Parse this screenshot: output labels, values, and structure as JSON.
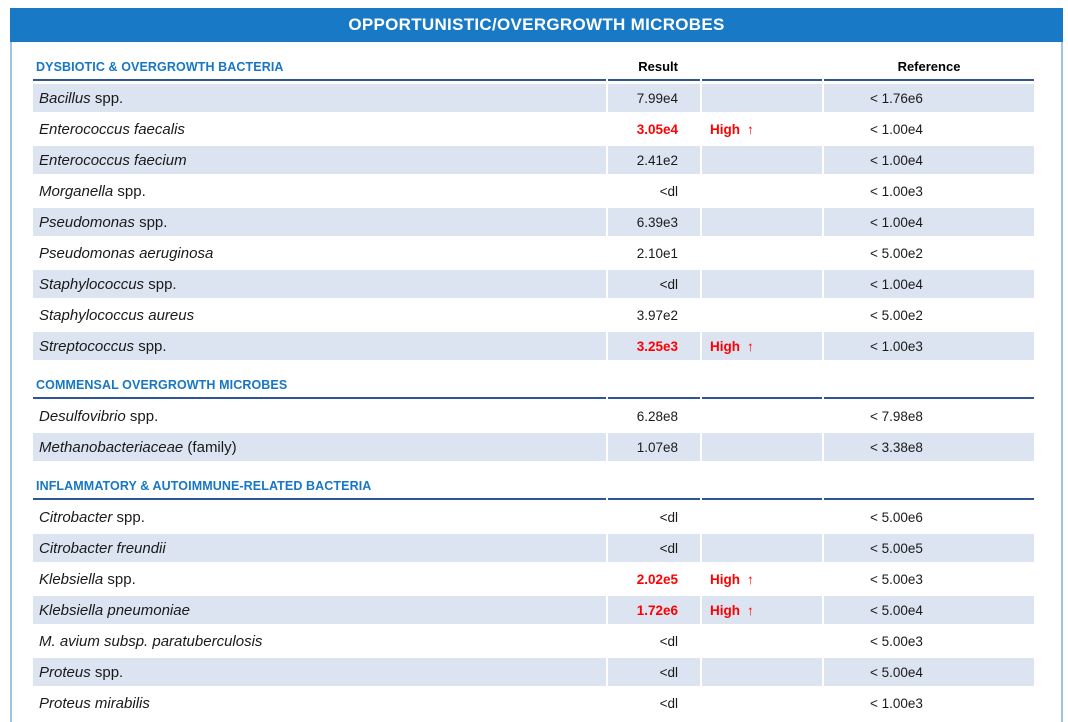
{
  "title": "OPPORTUNISTIC/OVERGROWTH MICROBES",
  "colors": {
    "header_bar": "#1879C6",
    "section_title": "#1777C4",
    "rule": "#2F5597",
    "row_stripe": "#DCE4F1",
    "panel_border": "#9DC3E6",
    "flag_red": "#FF0000"
  },
  "sections": [
    {
      "title": "DYSBIOTIC & OVERGROWTH BACTERIA",
      "col_headers": {
        "result": "Result",
        "reference": "Reference"
      },
      "rows": [
        {
          "name_italic": "Bacillus",
          "name_regular": " spp.",
          "result": "7.99e4",
          "flag": "",
          "flag_arrow": "",
          "reference": "< 1.76e6",
          "high": false
        },
        {
          "name_italic": "Enterococcus faecalis",
          "name_regular": "",
          "result": "3.05e4",
          "flag": "High",
          "flag_arrow": "↑",
          "reference": "< 1.00e4",
          "high": true
        },
        {
          "name_italic": "Enterococcus faecium",
          "name_regular": "",
          "result": "2.41e2",
          "flag": "",
          "flag_arrow": "",
          "reference": "< 1.00e4",
          "high": false
        },
        {
          "name_italic": "Morganella",
          "name_regular": " spp.",
          "result": "<dl",
          "flag": "",
          "flag_arrow": "",
          "reference": "< 1.00e3",
          "high": false
        },
        {
          "name_italic": "Pseudomonas",
          "name_regular": " spp.",
          "result": "6.39e3",
          "flag": "",
          "flag_arrow": "",
          "reference": "< 1.00e4",
          "high": false
        },
        {
          "name_italic": "Pseudomonas aeruginosa",
          "name_regular": "",
          "result": "2.10e1",
          "flag": "",
          "flag_arrow": "",
          "reference": "< 5.00e2",
          "high": false
        },
        {
          "name_italic": "Staphylococcus",
          "name_regular": " spp.",
          "result": "<dl",
          "flag": "",
          "flag_arrow": "",
          "reference": "< 1.00e4",
          "high": false
        },
        {
          "name_italic": "Staphylococcus aureus",
          "name_regular": "",
          "result": "3.97e2",
          "flag": "",
          "flag_arrow": "",
          "reference": "< 5.00e2",
          "high": false
        },
        {
          "name_italic": "Streptococcus",
          "name_regular": " spp.",
          "result": "3.25e3",
          "flag": "High",
          "flag_arrow": "↑",
          "reference": "< 1.00e3",
          "high": true
        }
      ]
    },
    {
      "title": "COMMENSAL OVERGROWTH MICROBES",
      "col_headers": {
        "result": "",
        "reference": ""
      },
      "rows": [
        {
          "name_italic": "Desulfovibrio",
          "name_regular": " spp.",
          "result": "6.28e8",
          "flag": "",
          "flag_arrow": "",
          "reference": "< 7.98e8",
          "high": false
        },
        {
          "name_italic": "Methanobacteriaceae",
          "name_regular": " (family)",
          "result": "1.07e8",
          "flag": "",
          "flag_arrow": "",
          "reference": "< 3.38e8",
          "high": false
        }
      ]
    },
    {
      "title": "INFLAMMATORY & AUTOIMMUNE-RELATED BACTERIA",
      "col_headers": {
        "result": "",
        "reference": ""
      },
      "rows": [
        {
          "name_italic": "Citrobacter",
          "name_regular": " spp.",
          "result": "<dl",
          "flag": "",
          "flag_arrow": "",
          "reference": "< 5.00e6",
          "high": false
        },
        {
          "name_italic": "Citrobacter freundii",
          "name_regular": "",
          "result": "<dl",
          "flag": "",
          "flag_arrow": "",
          "reference": "< 5.00e5",
          "high": false
        },
        {
          "name_italic": "Klebsiella",
          "name_regular": " spp.",
          "result": "2.02e5",
          "flag": "High",
          "flag_arrow": "↑",
          "reference": "< 5.00e3",
          "high": true
        },
        {
          "name_italic": "Klebsiella pneumoniae",
          "name_regular": "",
          "result": "1.72e6",
          "flag": "High",
          "flag_arrow": "↑",
          "reference": "< 5.00e4",
          "high": true
        },
        {
          "name_italic": "M. avium subsp. paratuberculosis",
          "name_regular": "",
          "result": "<dl",
          "flag": "",
          "flag_arrow": "",
          "reference": "< 5.00e3",
          "high": false
        },
        {
          "name_italic": "Proteus",
          "name_regular": " spp.",
          "result": "<dl",
          "flag": "",
          "flag_arrow": "",
          "reference": "< 5.00e4",
          "high": false
        },
        {
          "name_italic": "Proteus mirabilis",
          "name_regular": "",
          "result": "<dl",
          "flag": "",
          "flag_arrow": "",
          "reference": "< 1.00e3",
          "high": false
        }
      ]
    }
  ]
}
